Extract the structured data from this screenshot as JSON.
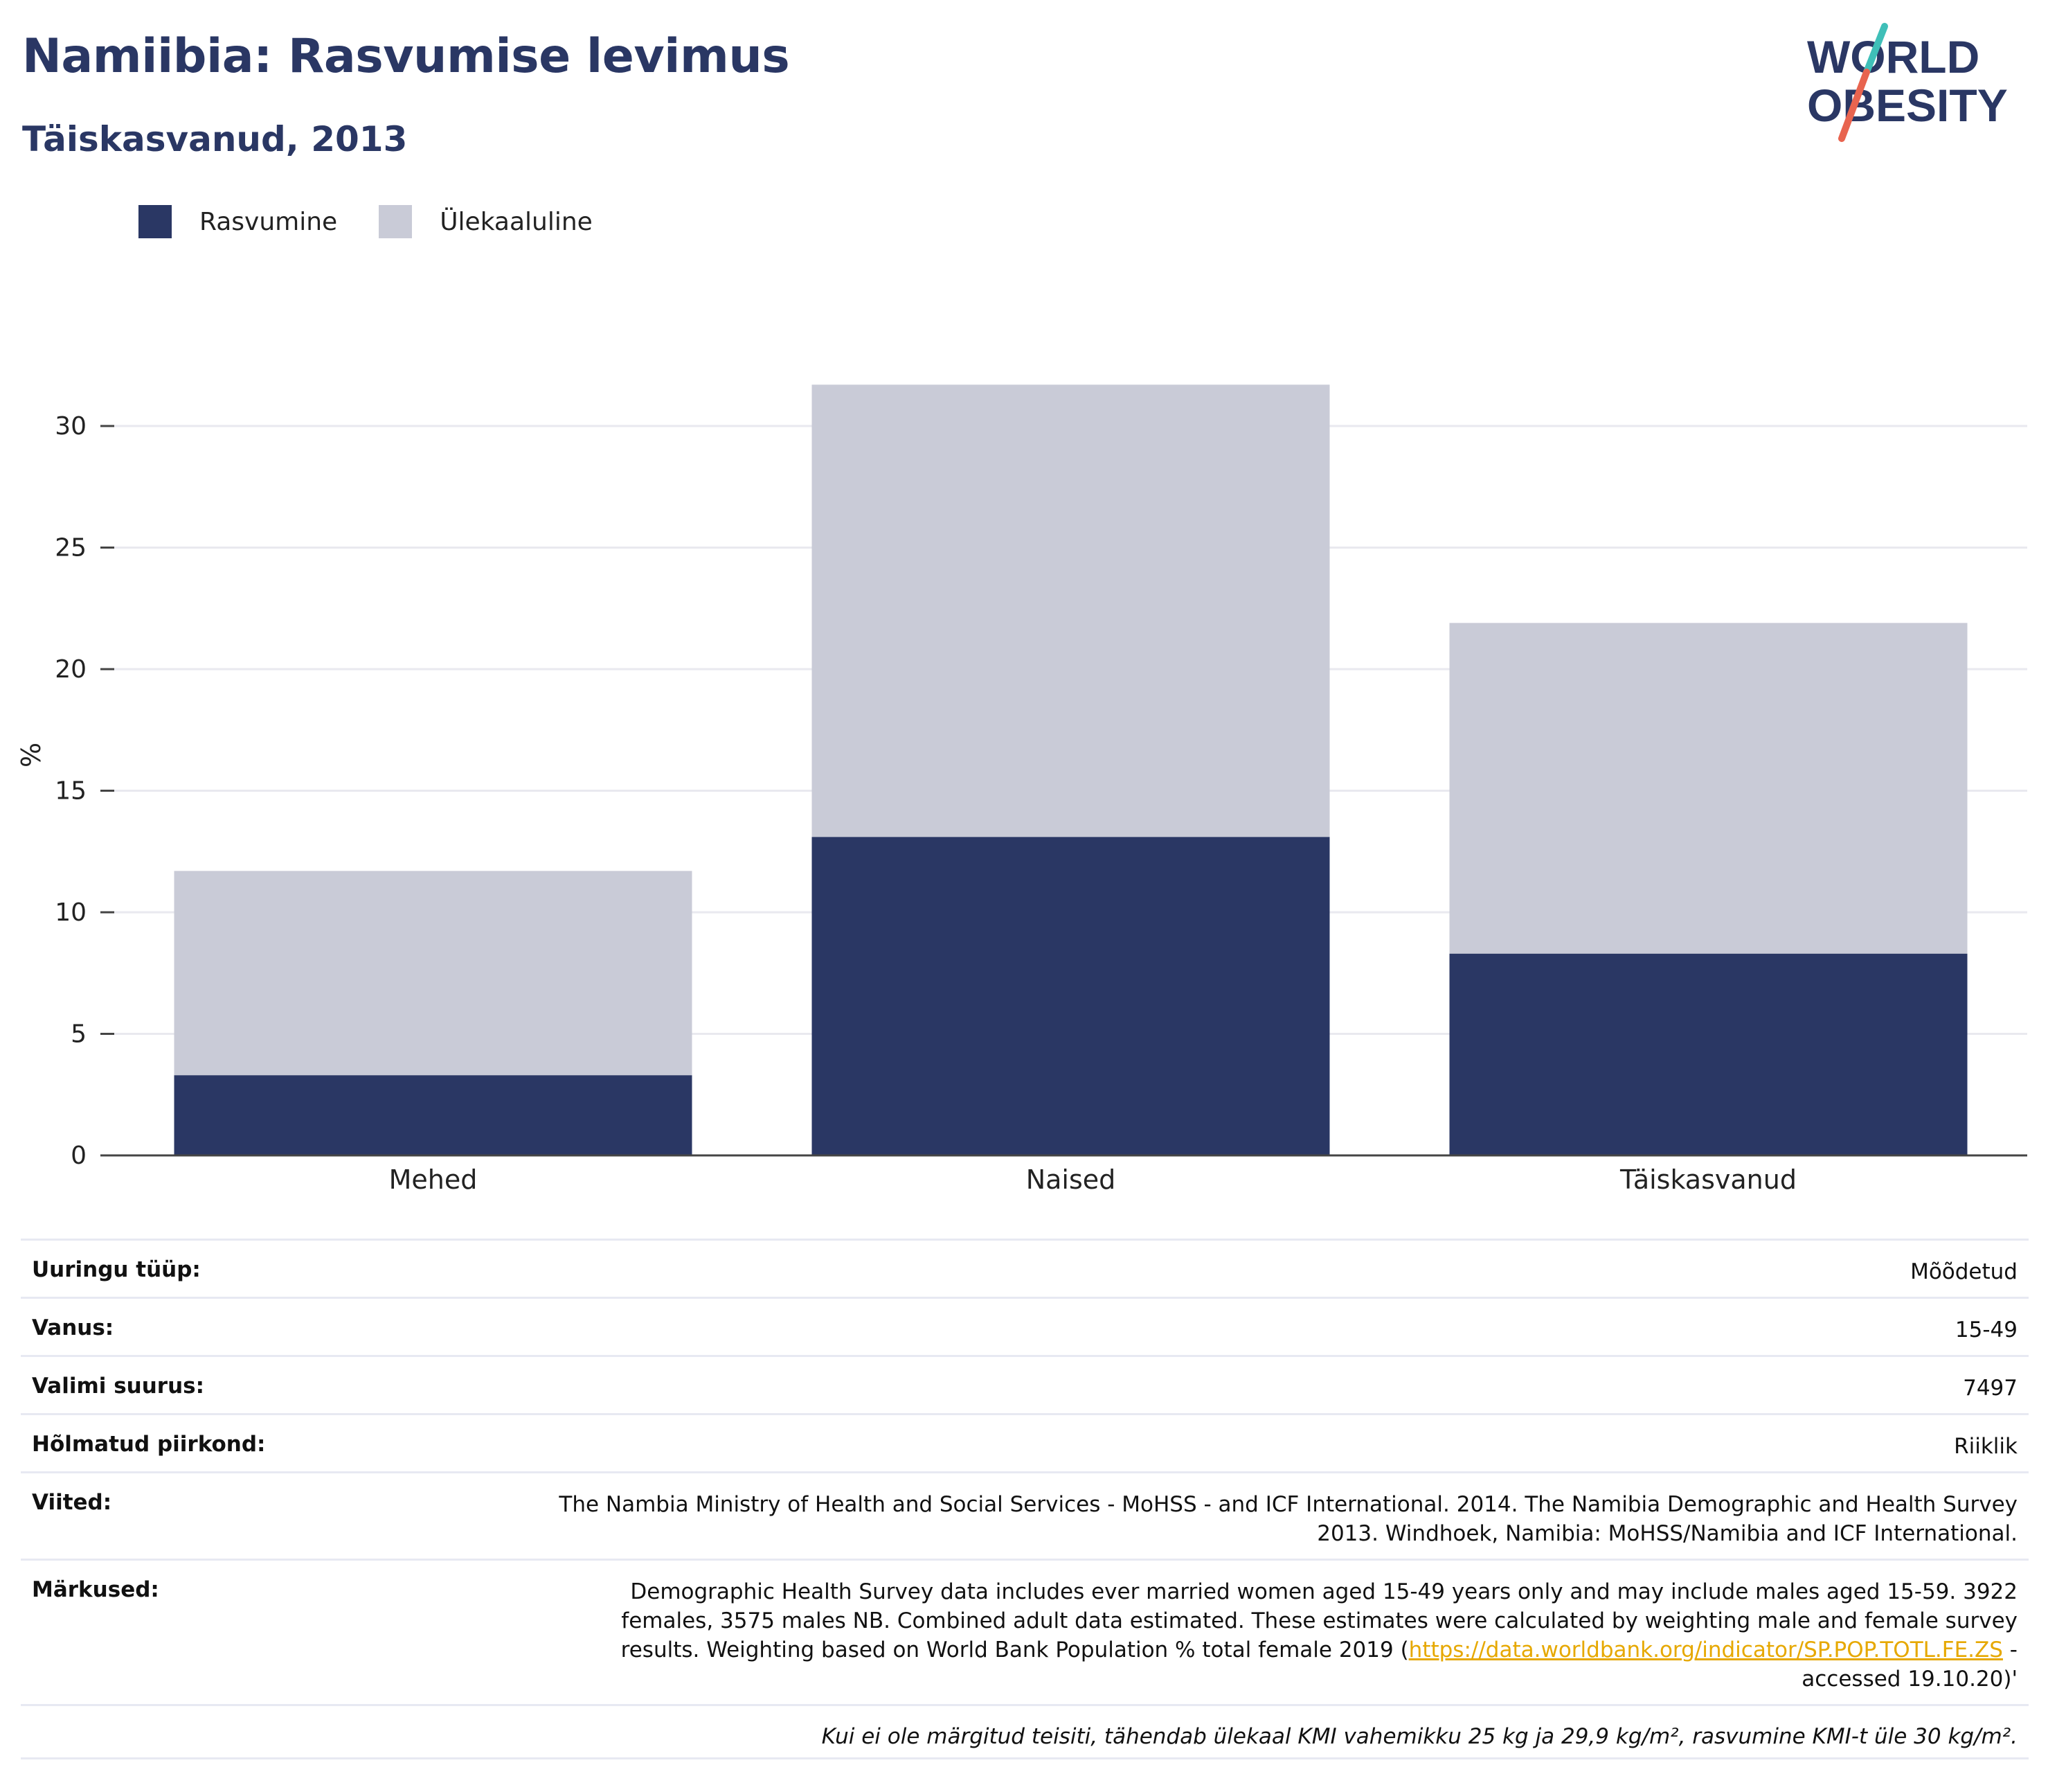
{
  "title": "Namiibia: Rasvumise levimus",
  "subtitle": "Täiskasvanud, 2013",
  "logo": {
    "line1": "WORLD",
    "line2": "OBESITY"
  },
  "colors": {
    "obesity": "#2a3764",
    "overweight": "#c9cbd7",
    "accent_teal": "#3fbfb8",
    "accent_red": "#e8644f"
  },
  "chart_data": {
    "type": "bar",
    "stacked": true,
    "categories": [
      "Mehed",
      "Naised",
      "Täiskasvanud"
    ],
    "series": [
      {
        "name": "Rasvumine",
        "values": [
          3.3,
          13.1,
          8.3
        ]
      },
      {
        "name": "Ülekaaluline",
        "values": [
          8.4,
          18.6,
          13.6
        ]
      }
    ],
    "ylabel": "%",
    "ylim": [
      0,
      32
    ],
    "yticks": [
      0,
      5,
      10,
      15,
      20,
      25,
      30
    ],
    "ytick_labels": [
      "0",
      "5",
      "10",
      "15",
      "20",
      "25",
      "30"
    ],
    "grid": true,
    "legend": "top-left"
  },
  "meta": [
    {
      "label": "Uuringu tüüp:",
      "value": "Mõõdetud"
    },
    {
      "label": "Vanus:",
      "value": "15-49"
    },
    {
      "label": "Valimi suurus:",
      "value": "7497"
    },
    {
      "label": "Hõlmatud piirkond:",
      "value": "Riiklik"
    },
    {
      "label": "Viited:",
      "value_lines": [
        "The Nambia Ministry of Health and Social Services - MoHSS - and ICF International. 2014. The Namibia Demographic and Health Survey",
        "2013. Windhoek, Namibia: MoHSS/Namibia and ICF International."
      ]
    }
  ],
  "notes": {
    "label": "Märkused:",
    "line1": "Demographic Health Survey data includes ever married women aged 15-49 years only and may include males aged 15-59. 3922",
    "line2": "females, 3575 males NB. Combined adult data estimated. These estimates were calculated by weighting male and female survey",
    "line3_pre": "results. Weighting based on World Bank Population % total female 2019 (",
    "link": "https://data.worldbank.org/indicator/SP.POP.TOTL.FE.ZS",
    "line3_post": " -",
    "line4": "accessed 19.10.20)'"
  },
  "footnote": "Kui ei ole märgitud teisiti, tähendab ülekaal KMI vahemikku 25 kg ja 29,9 kg/m², rasvumine KMI-t üle 30 kg/m²."
}
